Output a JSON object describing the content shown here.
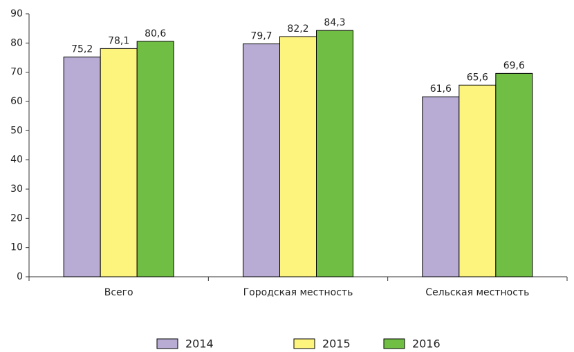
{
  "chart_data": {
    "type": "bar",
    "categories": [
      "Всего",
      "Городская местность",
      "Сельская местность"
    ],
    "series": [
      {
        "name": "2014",
        "color": "#b8acd4",
        "values": [
          75.2,
          79.7,
          61.6
        ],
        "value_labels": [
          "75,2",
          "79,7",
          "61,6"
        ]
      },
      {
        "name": "2015",
        "color": "#fdf47e",
        "values": [
          78.1,
          82.2,
          65.6
        ],
        "value_labels": [
          "78,1",
          "82,2",
          "65,6"
        ]
      },
      {
        "name": "2016",
        "color": "#70bf44",
        "values": [
          80.6,
          84.3,
          69.6
        ],
        "value_labels": [
          "80,6",
          "84,3",
          "69,6"
        ]
      }
    ],
    "ylim": [
      0,
      90
    ],
    "yticks": [
      0,
      10,
      20,
      30,
      40,
      50,
      60,
      70,
      80,
      90
    ],
    "grid": false,
    "legend": "bottom"
  }
}
